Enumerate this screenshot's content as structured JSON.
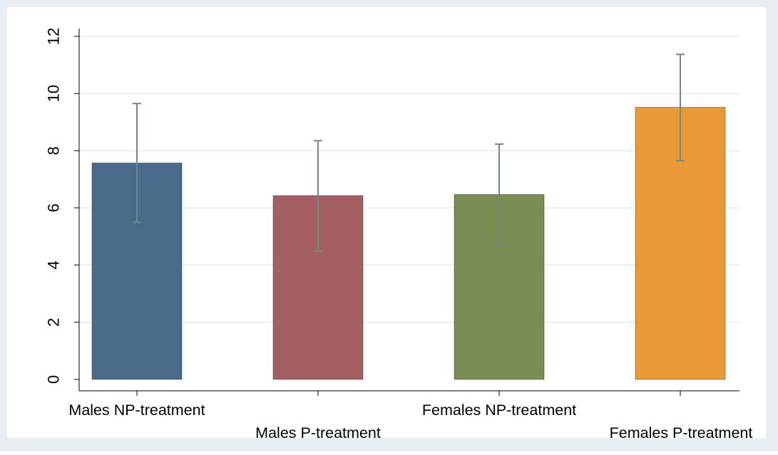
{
  "chart_data": {
    "type": "bar",
    "title": "",
    "xlabel": "",
    "ylabel": "",
    "ylim": [
      0,
      12.7
    ],
    "yticks": [
      0,
      2,
      4,
      6,
      8,
      10,
      12
    ],
    "grid": true,
    "categories": [
      "Males NP-treatment",
      "Males P-treatment",
      "Females NP-treatment",
      "Females P-treatment"
    ],
    "values": [
      7.57,
      6.43,
      6.47,
      9.52
    ],
    "error_low": [
      5.5,
      4.5,
      4.7,
      7.65
    ],
    "error_high": [
      9.65,
      8.35,
      8.23,
      11.37
    ],
    "colors": [
      "#4a6a8a",
      "#a55e62",
      "#798e55",
      "#e99937"
    ],
    "error_bar_color": "#6f8a84",
    "background_color": "#e8eef1",
    "plot_background_color": "#ffffff",
    "gridline_color": "#e3ebef"
  }
}
